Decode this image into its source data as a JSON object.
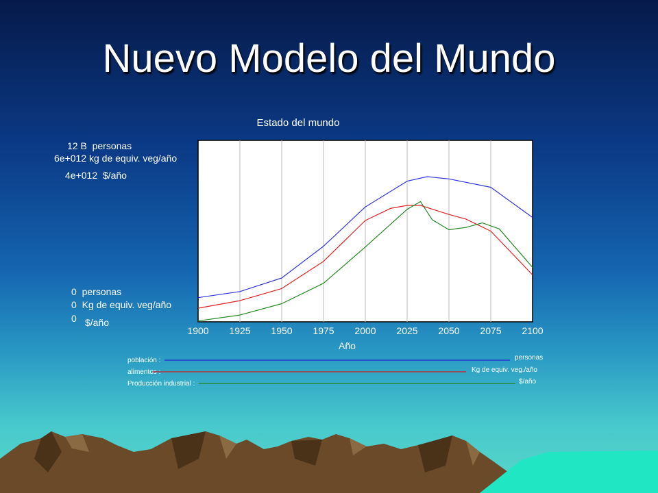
{
  "slide": {
    "title": "Nuevo Modelo del Mundo"
  },
  "chart_data": {
    "type": "line",
    "title": "Estado del mundo",
    "xlabel": "Año",
    "x_ticks": [
      "1900",
      "1925",
      "1950",
      "1975",
      "2000",
      "2025",
      "2050",
      "2075",
      "2100"
    ],
    "xlim": [
      1900,
      2100
    ],
    "grid": true,
    "axis_top_labels": [
      {
        "value": "12 B",
        "unit": "personas"
      },
      {
        "value": "6e+012",
        "unit": "kg de equiv. veg/año"
      },
      {
        "value": "4e+012",
        "unit": "$/año"
      }
    ],
    "axis_bottom_labels": [
      {
        "value": "0",
        "unit": "personas"
      },
      {
        "value": "0",
        "unit": "Kg de equiv. veg/año"
      },
      {
        "value": "0",
        "unit": "$/año"
      }
    ],
    "series": [
      {
        "name": "población",
        "unit": "personas",
        "color": "#3333dd",
        "scale_max": 12,
        "x": [
          1900,
          1925,
          1950,
          1975,
          2000,
          2025,
          2037,
          2050,
          2075,
          2100
        ],
        "y": [
          1.6,
          2.0,
          2.9,
          5.0,
          7.6,
          9.3,
          9.6,
          9.45,
          8.9,
          6.9
        ]
      },
      {
        "name": "alimentos",
        "unit": "Kg de equiv. veg./año",
        "color": "#dd2222",
        "scale_max": 6,
        "x": [
          1900,
          1925,
          1950,
          1975,
          2000,
          2015,
          2025,
          2033,
          2050,
          2060,
          2075,
          2100
        ],
        "y": [
          0.45,
          0.7,
          1.1,
          2.0,
          3.35,
          3.75,
          3.85,
          3.85,
          3.55,
          3.4,
          3.0,
          1.55
        ]
      },
      {
        "name": "Producción industrial",
        "unit": "$/año",
        "color": "#228822",
        "scale_max": 4,
        "x": [
          1900,
          1925,
          1950,
          1975,
          2000,
          2025,
          2033,
          2040,
          2050,
          2060,
          2070,
          2080,
          2100
        ],
        "y": [
          0.02,
          0.15,
          0.4,
          0.85,
          1.65,
          2.48,
          2.65,
          2.25,
          2.03,
          2.08,
          2.18,
          2.05,
          1.2
        ]
      }
    ]
  },
  "legend": [
    {
      "label": "población :",
      "unit": "personas"
    },
    {
      "label": "alimentos :",
      "unit": "Kg de equiv. veg./año"
    },
    {
      "label": "Producción industrial :",
      "unit": "$/año"
    }
  ]
}
